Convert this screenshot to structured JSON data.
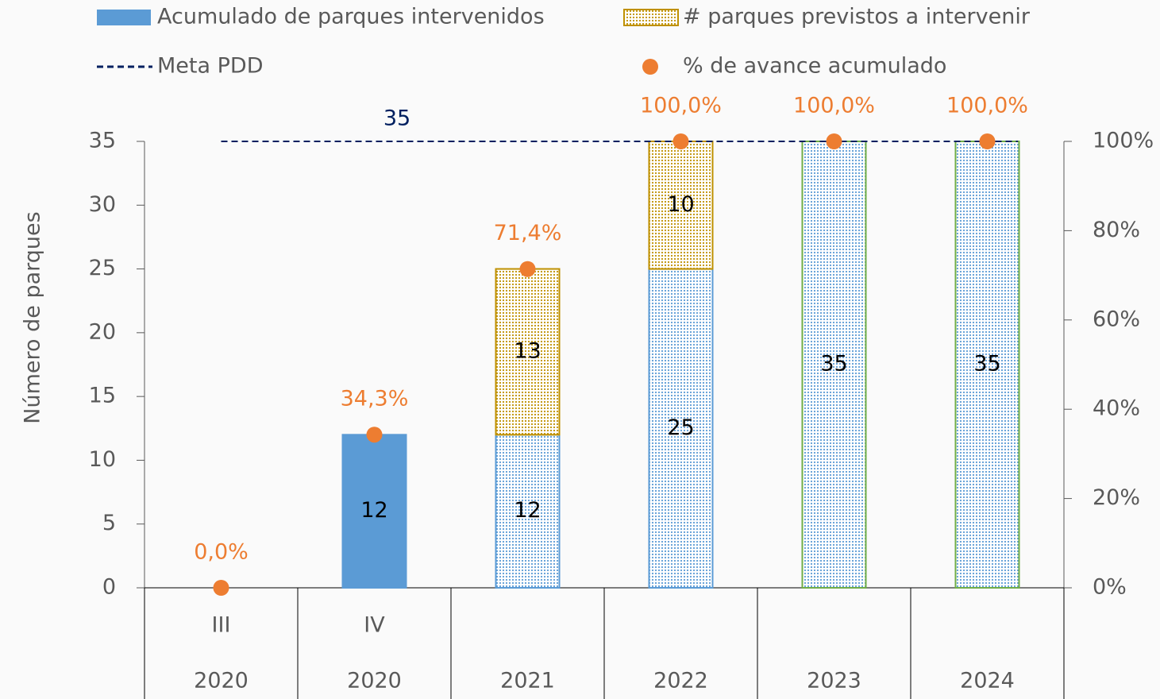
{
  "chart_data": {
    "type": "bar",
    "stacked": true,
    "categories": [
      "III",
      "IV",
      null,
      null,
      null,
      null
    ],
    "groups": [
      "2020",
      "2020",
      "2021",
      "2022",
      "2023",
      "2024"
    ],
    "ylabel": "Número de parques",
    "ylim": [
      0,
      35
    ],
    "yticks": [
      0,
      5,
      10,
      15,
      20,
      25,
      30,
      35
    ],
    "y2lim": [
      0,
      100
    ],
    "y2ticks": [
      {
        "value": 0,
        "label": "0%"
      },
      {
        "value": 20,
        "label": "20%"
      },
      {
        "value": 40,
        "label": "40%"
      },
      {
        "value": 60,
        "label": "60%"
      },
      {
        "value": 80,
        "label": "80%"
      },
      {
        "value": 100,
        "label": "100%"
      }
    ],
    "series": [
      {
        "name": "Acumulado de parques intervenidos",
        "color": "#5b9bd5",
        "values": [
          null,
          12,
          12,
          25,
          35,
          35
        ],
        "patterned": [
          false,
          false,
          true,
          true,
          true,
          true
        ],
        "edge_colors": [
          "#5b9bd5",
          "#5b9bd5",
          "#5b9bd5",
          "#5b9bd5",
          "#70ad47",
          "#70ad47"
        ]
      },
      {
        "name": "# parques previstos a intervenir",
        "color": "#ffd966",
        "edge_color": "#bf9000",
        "values": [
          null,
          null,
          13,
          10,
          null,
          null
        ]
      },
      {
        "name": "% de avance acumulado",
        "type": "scatter",
        "axis": "y2",
        "color": "#ed7d31",
        "values": [
          0,
          34.3,
          71.4,
          100,
          100,
          100
        ],
        "value_labels": [
          "0,0%",
          "34,3%",
          "71,4%",
          "100,0%",
          "100,0%",
          "100,0%"
        ]
      }
    ],
    "target": {
      "name": "Meta PDD",
      "value": 35,
      "color": "#002060"
    }
  }
}
